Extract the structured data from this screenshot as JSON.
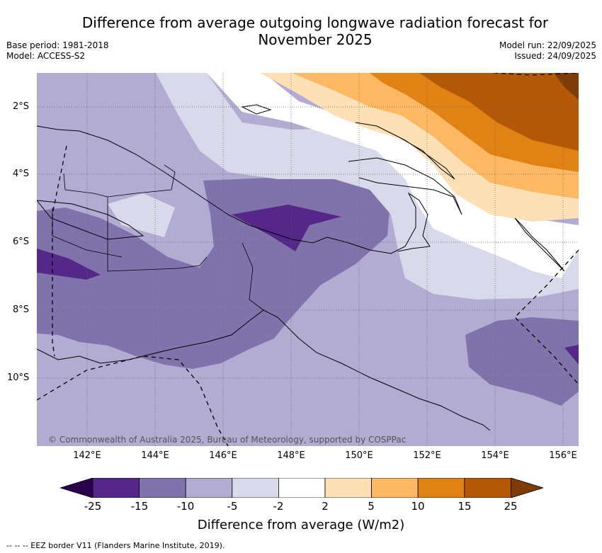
{
  "title_line1": "Difference from average outgoing longwave radiation forecast for",
  "title_line2": "November 2025",
  "base_period": "Base period: 1981-2018",
  "model": "Model: ACCESS-S2",
  "model_run": "Model run: 22/09/2025",
  "issued": "Issued: 24/09/2025",
  "lat_labels": [
    "2°S",
    "4°S",
    "6°S",
    "8°S",
    "10°S"
  ],
  "lon_labels": [
    "142°E",
    "144°E",
    "146°E",
    "148°E",
    "150°E",
    "152°E",
    "154°E",
    "156°E"
  ],
  "copyright": "© Commonwealth of Australia 2025, Bureau of Meteorology, supported by COSPPac",
  "legend": {
    "title": "Difference from average (W/m2)",
    "ticks": [
      "-25",
      "-15",
      "-10",
      "-5",
      "-2",
      "2",
      "5",
      "10",
      "15",
      "25"
    ],
    "colors": {
      "below_minus25": "#2d004b",
      "minus25_minus15": "#542788",
      "minus15_minus10": "#8073ac",
      "minus10_minus5": "#b2abd2",
      "minus5_minus2": "#d8daeb",
      "minus2_2": "#ffffff",
      "2_5": "#fee0b6",
      "5_10": "#fdb863",
      "10_15": "#e08214",
      "15_25": "#b35806",
      "above_25": "#7f3b08"
    }
  },
  "footnote": "--  --  -- EEZ border V11 (Flanders Marine Institute, 2019)."
}
